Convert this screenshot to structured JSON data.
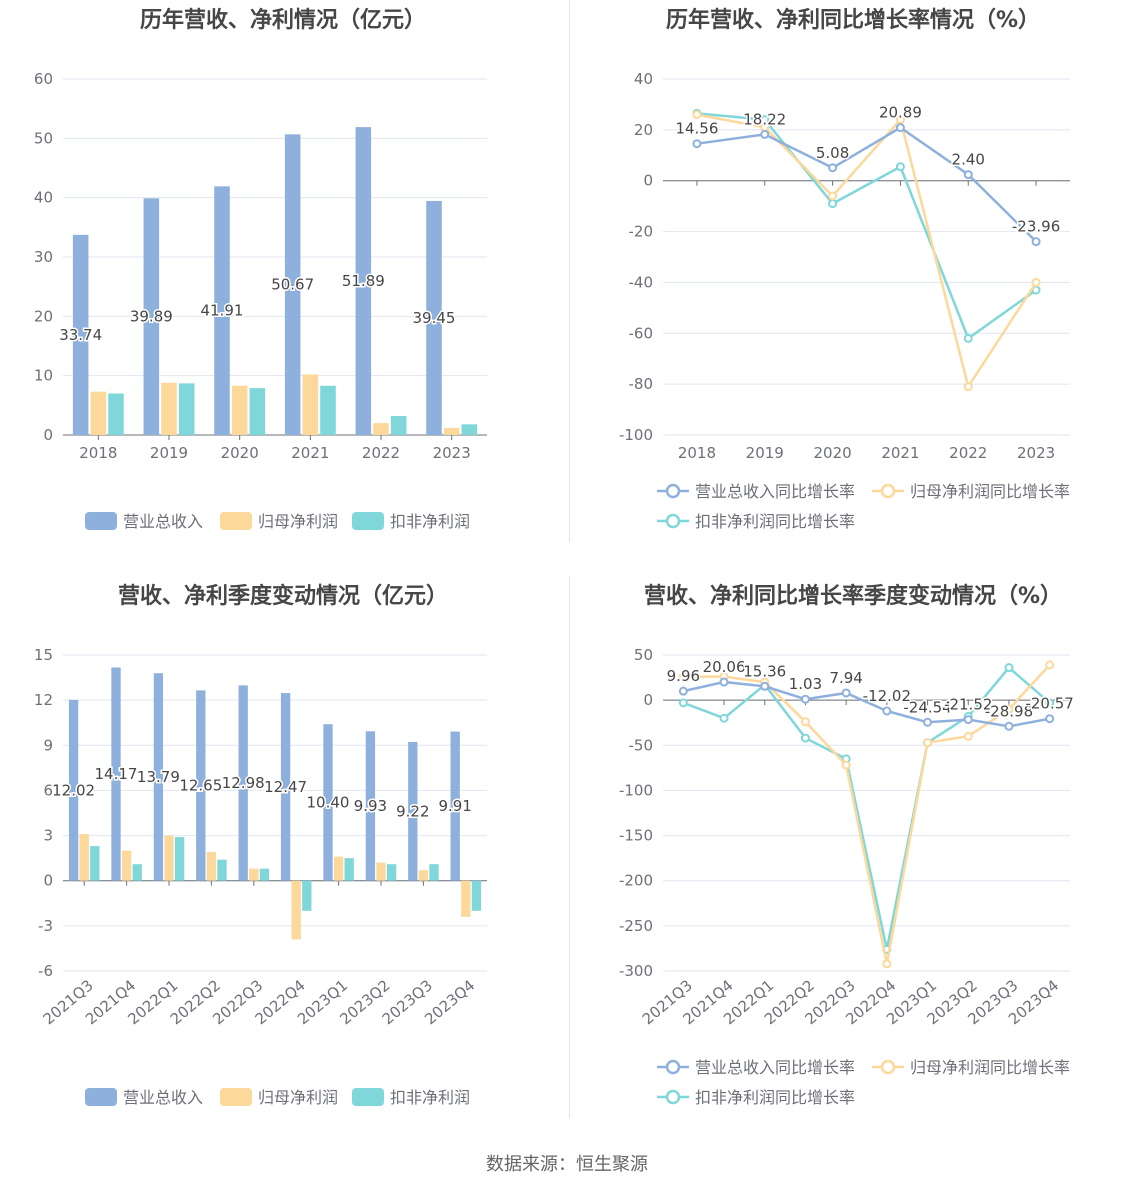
{
  "colors": {
    "revenue": "#8eb0dc",
    "net_profit": "#fcd89a",
    "deducted_profit": "#7fd7d9",
    "axis_text": "#6e7079",
    "grid": "#e0e6f1",
    "label": "#464646"
  },
  "source_label": "数据来源：恒生聚源",
  "chart_data": [
    {
      "id": "annual_values",
      "type": "bar",
      "title": "历年营收、净利情况（亿元）",
      "categories": [
        "2018",
        "2019",
        "2020",
        "2021",
        "2022",
        "2023"
      ],
      "ylim": [
        0,
        60
      ],
      "yticks": [
        0,
        10,
        20,
        30,
        40,
        50,
        60
      ],
      "series": [
        {
          "name": "营业总收入",
          "values": [
            33.74,
            39.89,
            41.91,
            50.67,
            51.89,
            39.45
          ],
          "labels": [
            "33.74",
            "39.89",
            "41.91",
            "50.67",
            "51.89",
            "39.45"
          ]
        },
        {
          "name": "归母净利润",
          "values": [
            7.3,
            8.8,
            8.3,
            10.2,
            2.0,
            1.2
          ]
        },
        {
          "name": "扣非净利润",
          "values": [
            7.0,
            8.7,
            7.9,
            8.3,
            3.2,
            1.8
          ]
        }
      ],
      "legend_position": "bottom"
    },
    {
      "id": "annual_growth",
      "type": "line",
      "title": "历年营收、净利同比增长率情况（%）",
      "categories": [
        "2018",
        "2019",
        "2020",
        "2021",
        "2022",
        "2023"
      ],
      "ylim": [
        -100,
        40
      ],
      "yticks": [
        -100,
        -80,
        -60,
        -40,
        -20,
        0,
        20,
        40
      ],
      "series": [
        {
          "name": "营业总收入同比增长率",
          "values": [
            14.56,
            18.22,
            5.08,
            20.89,
            2.4,
            -23.96
          ],
          "labels": [
            "14.56",
            "18.22",
            "5.08",
            "20.89",
            "2.40",
            "-23.96"
          ]
        },
        {
          "name": "归母净利润同比增长率",
          "values": [
            26,
            21,
            -6,
            24,
            -81,
            -40
          ]
        },
        {
          "name": "扣非净利润同比增长率",
          "values": [
            26.5,
            24,
            -9,
            5.5,
            -62,
            -43
          ]
        }
      ],
      "legend_position": "bottom"
    },
    {
      "id": "quarterly_values",
      "type": "bar",
      "title": "营收、净利季度变动情况（亿元）",
      "categories": [
        "2021Q3",
        "2021Q4",
        "2022Q1",
        "2022Q2",
        "2022Q3",
        "2022Q4",
        "2023Q1",
        "2023Q2",
        "2023Q3",
        "2023Q4"
      ],
      "ylim": [
        -6,
        15
      ],
      "yticks": [
        -6,
        -3,
        0,
        3,
        6,
        9,
        12,
        15
      ],
      "series": [
        {
          "name": "营业总收入",
          "values": [
            12.02,
            14.17,
            13.79,
            12.65,
            12.98,
            12.47,
            10.4,
            9.93,
            9.22,
            9.91
          ],
          "labels": [
            "12.02",
            "14.17",
            "13.79",
            "12.65",
            "12.98",
            "12.47",
            "10.40",
            "9.93",
            "9.22",
            "9.91"
          ]
        },
        {
          "name": "归母净利润",
          "values": [
            3.1,
            2.0,
            3.0,
            1.9,
            0.8,
            -3.9,
            1.6,
            1.2,
            0.7,
            -2.4
          ]
        },
        {
          "name": "扣非净利润",
          "values": [
            2.3,
            1.1,
            2.9,
            1.4,
            0.8,
            -2.0,
            1.5,
            1.1,
            1.1,
            -2.0
          ]
        }
      ],
      "legend_position": "bottom"
    },
    {
      "id": "quarterly_growth",
      "type": "line",
      "title": "营收、净利同比增长率季度变动情况（%）",
      "categories": [
        "2021Q3",
        "2021Q4",
        "2022Q1",
        "2022Q2",
        "2022Q3",
        "2022Q4",
        "2023Q1",
        "2023Q2",
        "2023Q3",
        "2023Q4"
      ],
      "ylim": [
        -300,
        50
      ],
      "yticks": [
        -300,
        -250,
        -200,
        -150,
        -100,
        -50,
        0,
        50
      ],
      "series": [
        {
          "name": "营业总收入同比增长率",
          "values": [
            9.96,
            20.06,
            15.36,
            1.03,
            7.94,
            -12.02,
            -24.54,
            -21.52,
            -28.98,
            -20.57
          ],
          "labels": [
            "9.96",
            "20.06",
            "15.36",
            "1.03",
            "7.94",
            "-12.02",
            "-24.54",
            "-21.52",
            "-28.98",
            "-20.57"
          ]
        },
        {
          "name": "归母净利润同比增长率",
          "values": [
            26,
            26,
            20,
            -24,
            -72,
            -292,
            -47,
            -40,
            -10,
            39
          ]
        },
        {
          "name": "扣非净利润同比增长率",
          "values": [
            -3,
            -20,
            17,
            -42,
            -65,
            -276,
            -47,
            -18,
            36,
            -3
          ]
        }
      ],
      "legend_position": "bottom"
    }
  ]
}
